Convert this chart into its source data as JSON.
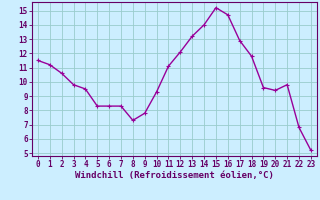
{
  "x": [
    0,
    1,
    2,
    3,
    4,
    5,
    6,
    7,
    8,
    9,
    10,
    11,
    12,
    13,
    14,
    15,
    16,
    17,
    18,
    19,
    20,
    21,
    22,
    23
  ],
  "y": [
    11.5,
    11.2,
    10.6,
    9.8,
    9.5,
    8.3,
    8.3,
    8.3,
    7.3,
    7.8,
    9.3,
    11.1,
    12.1,
    13.2,
    14.0,
    15.2,
    14.7,
    12.9,
    11.8,
    9.6,
    9.4,
    9.8,
    6.8,
    5.2
  ],
  "line_color": "#990099",
  "bg_color": "#cceeff",
  "grid_color": "#99cccc",
  "xlabel": "Windchill (Refroidissement éolien,°C)",
  "xlim": [
    -0.5,
    23.5
  ],
  "ylim": [
    4.8,
    15.6
  ],
  "yticks": [
    5,
    6,
    7,
    8,
    9,
    10,
    11,
    12,
    13,
    14,
    15
  ],
  "xticks": [
    0,
    1,
    2,
    3,
    4,
    5,
    6,
    7,
    8,
    9,
    10,
    11,
    12,
    13,
    14,
    15,
    16,
    17,
    18,
    19,
    20,
    21,
    22,
    23
  ],
  "tick_fontsize": 5.5,
  "xlabel_fontsize": 6.5,
  "text_color": "#660066",
  "spine_color": "#660066",
  "marker_size": 3.5,
  "linewidth": 1.0
}
